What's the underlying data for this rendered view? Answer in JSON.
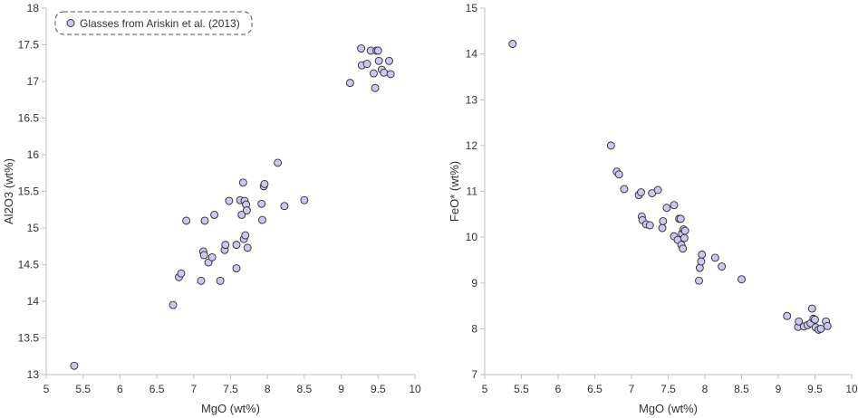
{
  "chart_data": [
    {
      "type": "scatter",
      "xlabel": "MgO (wt%)",
      "ylabel": "Al2O3 (wt%)",
      "xlim": [
        5,
        10
      ],
      "ylim": [
        13,
        18
      ],
      "xticks": [
        "5",
        "5.5",
        "6",
        "6.5",
        "7",
        "7.5",
        "8",
        "8.5",
        "9",
        "9.5",
        "10"
      ],
      "yticks": [
        "13",
        "13.5",
        "14",
        "14.5",
        "15",
        "15.5",
        "16",
        "16.5",
        "17",
        "17.5",
        "18"
      ],
      "grid": false,
      "legend": {
        "position": "top-left",
        "entries": [
          "Glasses from Ariskin et al. (2013)"
        ]
      },
      "series": [
        {
          "name": "Glasses from Ariskin et al. (2013)",
          "color": "#c8c8f0",
          "points": [
            [
              5.38,
              13.12
            ],
            [
              6.72,
              13.95
            ],
            [
              6.8,
              14.33
            ],
            [
              6.83,
              14.38
            ],
            [
              6.9,
              15.1
            ],
            [
              7.1,
              14.28
            ],
            [
              7.13,
              14.68
            ],
            [
              7.14,
              14.63
            ],
            [
              7.15,
              15.1
            ],
            [
              7.2,
              14.53
            ],
            [
              7.25,
              14.6
            ],
            [
              7.28,
              15.18
            ],
            [
              7.36,
              14.28
            ],
            [
              7.42,
              14.7
            ],
            [
              7.43,
              14.77
            ],
            [
              7.48,
              15.37
            ],
            [
              7.58,
              14.45
            ],
            [
              7.58,
              14.77
            ],
            [
              7.63,
              15.38
            ],
            [
              7.65,
              15.18
            ],
            [
              7.67,
              15.62
            ],
            [
              7.68,
              14.85
            ],
            [
              7.69,
              15.37
            ],
            [
              7.7,
              14.9
            ],
            [
              7.71,
              15.32
            ],
            [
              7.72,
              15.24
            ],
            [
              7.73,
              14.73
            ],
            [
              7.92,
              15.33
            ],
            [
              7.93,
              15.11
            ],
            [
              7.95,
              15.57
            ],
            [
              7.96,
              15.6
            ],
            [
              8.14,
              15.89
            ],
            [
              8.23,
              15.3
            ],
            [
              8.5,
              15.38
            ],
            [
              9.12,
              16.98
            ],
            [
              9.27,
              17.45
            ],
            [
              9.28,
              17.22
            ],
            [
              9.35,
              17.24
            ],
            [
              9.4,
              17.42
            ],
            [
              9.44,
              17.11
            ],
            [
              9.46,
              16.91
            ],
            [
              9.48,
              17.42
            ],
            [
              9.5,
              17.42
            ],
            [
              9.51,
              17.28
            ],
            [
              9.55,
              17.16
            ],
            [
              9.58,
              17.12
            ],
            [
              9.65,
              17.28
            ],
            [
              9.67,
              17.1
            ]
          ]
        }
      ]
    },
    {
      "type": "scatter",
      "xlabel": "MgO (wt%)",
      "ylabel": "FeO* (wt%)",
      "xlim": [
        5,
        10
      ],
      "ylim": [
        7,
        15
      ],
      "xticks": [
        "5",
        "5.5",
        "6",
        "6.5",
        "7",
        "7.5",
        "8",
        "8.5",
        "9",
        "9.5",
        "10"
      ],
      "yticks": [
        "7",
        "8",
        "9",
        "10",
        "11",
        "12",
        "13",
        "14",
        "15"
      ],
      "grid": false,
      "series": [
        {
          "name": "Glasses from Ariskin et al. (2013)",
          "color": "#c8c8f0",
          "points": [
            [
              5.38,
              14.22
            ],
            [
              6.72,
              12.0
            ],
            [
              6.8,
              11.43
            ],
            [
              6.83,
              11.37
            ],
            [
              6.9,
              11.05
            ],
            [
              7.1,
              10.92
            ],
            [
              7.13,
              10.98
            ],
            [
              7.14,
              10.45
            ],
            [
              7.15,
              10.37
            ],
            [
              7.2,
              10.28
            ],
            [
              7.25,
              10.26
            ],
            [
              7.28,
              10.96
            ],
            [
              7.36,
              11.03
            ],
            [
              7.42,
              10.2
            ],
            [
              7.43,
              10.35
            ],
            [
              7.48,
              10.64
            ],
            [
              7.58,
              10.7
            ],
            [
              7.58,
              10.02
            ],
            [
              7.63,
              9.94
            ],
            [
              7.65,
              10.4
            ],
            [
              7.67,
              10.4
            ],
            [
              7.68,
              9.83
            ],
            [
              7.69,
              10.08
            ],
            [
              7.7,
              9.75
            ],
            [
              7.71,
              10.17
            ],
            [
              7.72,
              9.98
            ],
            [
              7.73,
              10.14
            ],
            [
              7.92,
              9.05
            ],
            [
              7.93,
              9.33
            ],
            [
              7.95,
              9.47
            ],
            [
              7.96,
              9.62
            ],
            [
              8.14,
              9.55
            ],
            [
              8.23,
              9.36
            ],
            [
              8.5,
              9.08
            ],
            [
              9.12,
              8.28
            ],
            [
              9.27,
              8.04
            ],
            [
              9.28,
              8.16
            ],
            [
              9.35,
              8.05
            ],
            [
              9.4,
              8.08
            ],
            [
              9.44,
              8.12
            ],
            [
              9.46,
              8.44
            ],
            [
              9.48,
              8.22
            ],
            [
              9.5,
              8.2
            ],
            [
              9.51,
              8.03
            ],
            [
              9.55,
              7.98
            ],
            [
              9.58,
              8.0
            ],
            [
              9.65,
              8.16
            ],
            [
              9.67,
              8.06
            ]
          ]
        }
      ]
    }
  ]
}
